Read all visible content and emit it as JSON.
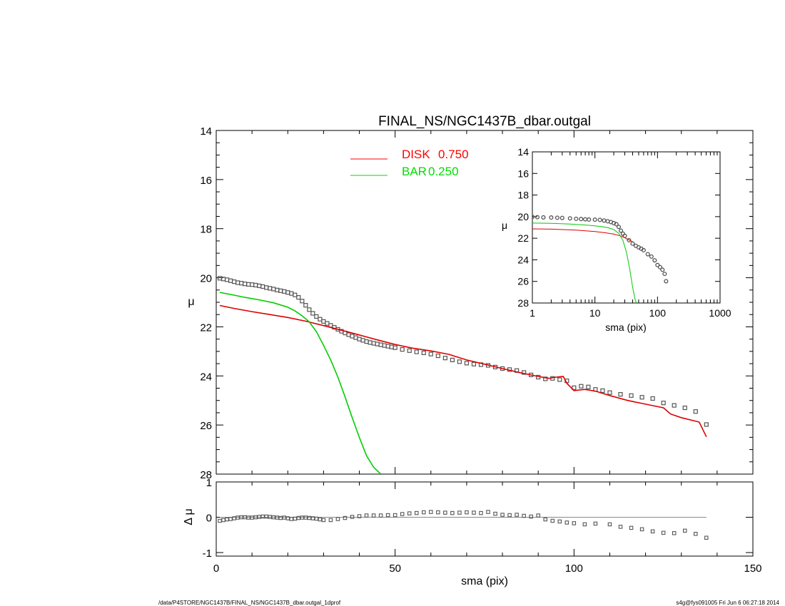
{
  "chart_data": [
    {
      "type": "scatter",
      "panel": "main",
      "title": "FINAL_NS/NGC1437B_dbar.outgal",
      "xlabel": "",
      "ylabel": "μ",
      "xlim": [
        0,
        150
      ],
      "ylim": [
        28,
        14
      ],
      "x_ticks": [
        "0",
        "50",
        "100",
        "150"
      ],
      "y_ticks": [
        "14",
        "16",
        "18",
        "20",
        "22",
        "24",
        "26",
        "28"
      ],
      "legend": {
        "placement": "top-center",
        "entries": [
          {
            "name": "DISK",
            "value": "0.750",
            "color": "#ff0000"
          },
          {
            "name": "BAR",
            "value": "0.250",
            "color": "#00dd00"
          }
        ]
      },
      "series": [
        {
          "name": "data",
          "kind": "points",
          "color": "#555555",
          "x": [
            1,
            2,
            3,
            4,
            5,
            6,
            7,
            8,
            9,
            10,
            11,
            12,
            13,
            14,
            15,
            16,
            17,
            18,
            19,
            20,
            21,
            22,
            23,
            24,
            25,
            26,
            27,
            28,
            29,
            30,
            31,
            32,
            33,
            34,
            35,
            36,
            37,
            38,
            39,
            40,
            41,
            42,
            43,
            44,
            45,
            46,
            47,
            48,
            49,
            50,
            52,
            54,
            56,
            58,
            60,
            62,
            64,
            66,
            68,
            70,
            72,
            74,
            76,
            78,
            80,
            82,
            84,
            86,
            88,
            90,
            92,
            94,
            96,
            98,
            100,
            102,
            104,
            106,
            108,
            110,
            113,
            116,
            119,
            122,
            125,
            128,
            131,
            134,
            137
          ],
          "y": [
            20.02,
            20.05,
            20.08,
            20.12,
            20.16,
            20.2,
            20.22,
            20.25,
            20.27,
            20.28,
            20.3,
            20.33,
            20.36,
            20.4,
            20.43,
            20.46,
            20.5,
            20.53,
            20.56,
            20.6,
            20.64,
            20.7,
            20.8,
            20.95,
            21.12,
            21.3,
            21.45,
            21.58,
            21.69,
            21.78,
            21.86,
            21.94,
            22.02,
            22.1,
            22.18,
            22.25,
            22.32,
            22.38,
            22.44,
            22.5,
            22.55,
            22.6,
            22.64,
            22.67,
            22.7,
            22.73,
            22.76,
            22.79,
            22.82,
            22.85,
            22.92,
            22.97,
            23.02,
            23.06,
            23.11,
            23.18,
            23.27,
            23.35,
            23.42,
            23.48,
            23.52,
            23.54,
            23.57,
            23.64,
            23.7,
            23.74,
            23.78,
            23.86,
            23.96,
            24.05,
            24.12,
            24.1,
            24.15,
            24.2,
            24.48,
            24.42,
            24.45,
            24.55,
            24.6,
            24.68,
            24.75,
            24.8,
            24.87,
            24.92,
            25.1,
            25.2,
            25.3,
            25.45,
            25.98
          ]
        },
        {
          "name": "DISK",
          "kind": "line",
          "color": "#dd0000",
          "x": [
            1,
            5,
            10,
            15,
            20,
            25,
            30,
            35,
            40,
            45,
            50,
            55,
            60,
            65,
            70,
            75,
            80,
            85,
            90,
            93,
            95,
            97,
            98,
            100,
            103,
            106,
            110,
            115,
            120,
            125,
            127,
            130,
            135,
            137
          ],
          "y": [
            21.13,
            21.25,
            21.38,
            21.5,
            21.62,
            21.77,
            21.95,
            22.14,
            22.33,
            22.53,
            22.72,
            22.87,
            22.98,
            23.12,
            23.35,
            23.52,
            23.7,
            23.87,
            24.02,
            24.1,
            24.05,
            24.02,
            24.3,
            24.6,
            24.55,
            24.62,
            24.8,
            25.0,
            25.15,
            25.3,
            25.55,
            25.7,
            25.88,
            26.48
          ]
        },
        {
          "name": "BAR",
          "kind": "line",
          "color": "#00cc00",
          "x": [
            1,
            4,
            8,
            12,
            16,
            20,
            22,
            24,
            26,
            28,
            30,
            32,
            34,
            36,
            38,
            40,
            42,
            44,
            46
          ],
          "y": [
            20.6,
            20.68,
            20.8,
            20.9,
            21.02,
            21.2,
            21.35,
            21.55,
            21.8,
            22.2,
            22.75,
            23.35,
            24.05,
            24.85,
            25.7,
            26.5,
            27.25,
            27.72,
            28.0
          ]
        }
      ]
    },
    {
      "type": "scatter",
      "panel": "inset",
      "title": "",
      "xlabel": "sma (pix)",
      "ylabel": "μ",
      "xscale": "log",
      "xlim": [
        1,
        1000
      ],
      "ylim": [
        28,
        14
      ],
      "x_ticks": [
        "1",
        "10",
        "100",
        "1000"
      ],
      "y_ticks": [
        "14",
        "16",
        "18",
        "20",
        "22",
        "24",
        "26",
        "28"
      ],
      "series": [
        {
          "name": "data",
          "kind": "points",
          "color": "#555555",
          "x": [
            1,
            1.2,
            1.5,
            2,
            2.5,
            3,
            4,
            5,
            6,
            7,
            8,
            10,
            12,
            14,
            16,
            18,
            20,
            22,
            24,
            26,
            28,
            30,
            35,
            40,
            45,
            50,
            55,
            60,
            70,
            80,
            90,
            100,
            110,
            120,
            130,
            137
          ],
          "y": [
            20.02,
            20.05,
            20.07,
            20.08,
            20.1,
            20.12,
            20.16,
            20.2,
            20.22,
            20.25,
            20.27,
            20.28,
            20.3,
            20.36,
            20.43,
            20.5,
            20.6,
            20.7,
            20.95,
            21.3,
            21.58,
            21.78,
            22.18,
            22.5,
            22.7,
            22.85,
            22.97,
            23.11,
            23.48,
            23.7,
            24.05,
            24.48,
            24.68,
            24.92,
            25.3,
            25.98
          ]
        },
        {
          "name": "DISK",
          "kind": "line",
          "color": "#dd0000",
          "x": [
            1,
            2,
            5,
            10,
            15,
            20,
            25,
            30,
            40
          ],
          "y": [
            21.13,
            21.16,
            21.25,
            21.38,
            21.5,
            21.62,
            21.77,
            21.95,
            22.33
          ]
        },
        {
          "name": "BAR",
          "kind": "line",
          "color": "#00cc00",
          "x": [
            1,
            2,
            4,
            8,
            12,
            16,
            20,
            24,
            28,
            32,
            36,
            40,
            44,
            46
          ],
          "y": [
            20.6,
            20.62,
            20.68,
            20.8,
            20.9,
            21.02,
            21.2,
            21.55,
            22.2,
            23.35,
            24.85,
            26.5,
            27.72,
            28.0
          ]
        }
      ]
    },
    {
      "type": "scatter",
      "panel": "residual",
      "title": "",
      "xlabel": "sma (pix)",
      "ylabel": "Δ μ",
      "xlim": [
        0,
        150
      ],
      "ylim": [
        -1.1,
        1.0
      ],
      "x_ticks": [
        "0",
        "50",
        "100",
        "150"
      ],
      "y_ticks": [
        "1",
        "0",
        "-1"
      ],
      "zero_line": true,
      "series": [
        {
          "name": "residual",
          "kind": "points",
          "color": "#555555",
          "x": [
            1,
            2,
            3,
            4,
            5,
            6,
            7,
            8,
            9,
            10,
            11,
            12,
            13,
            14,
            15,
            16,
            17,
            18,
            19,
            20,
            21,
            22,
            23,
            24,
            25,
            26,
            27,
            28,
            29,
            30,
            32,
            34,
            36,
            38,
            40,
            42,
            44,
            46,
            48,
            50,
            52,
            54,
            56,
            58,
            60,
            62,
            64,
            66,
            68,
            70,
            72,
            74,
            76,
            78,
            80,
            82,
            84,
            86,
            88,
            90,
            92,
            94,
            96,
            98,
            100,
            103,
            106,
            110,
            113,
            116,
            119,
            122,
            125,
            128,
            131,
            134,
            137
          ],
          "y": [
            -0.1,
            -0.08,
            -0.06,
            -0.05,
            -0.03,
            -0.01,
            0.0,
            0.0,
            -0.01,
            -0.01,
            0.0,
            0.01,
            0.02,
            0.02,
            0.01,
            0.0,
            -0.01,
            -0.02,
            -0.01,
            -0.03,
            -0.05,
            -0.04,
            -0.02,
            -0.01,
            -0.01,
            -0.02,
            -0.03,
            -0.04,
            -0.06,
            -0.08,
            -0.08,
            -0.05,
            -0.02,
            0.01,
            0.03,
            0.05,
            0.05,
            0.05,
            0.06,
            0.06,
            0.09,
            0.11,
            0.12,
            0.14,
            0.15,
            0.14,
            0.13,
            0.12,
            0.13,
            0.14,
            0.13,
            0.12,
            0.15,
            0.1,
            0.07,
            0.06,
            0.07,
            0.04,
            0.02,
            0.05,
            -0.06,
            -0.1,
            -0.12,
            -0.15,
            -0.17,
            -0.2,
            -0.18,
            -0.2,
            -0.27,
            -0.3,
            -0.34,
            -0.4,
            -0.44,
            -0.45,
            -0.38,
            -0.47,
            -0.58
          ]
        }
      ]
    }
  ],
  "footer": {
    "left": "/data/P4STORE/NGC1437B/FINAL_NS/NGC1437B_dbar.outgal_1dprof",
    "right": "s4g@fys091005  Fri Jun  6 06:27:18 2014"
  }
}
